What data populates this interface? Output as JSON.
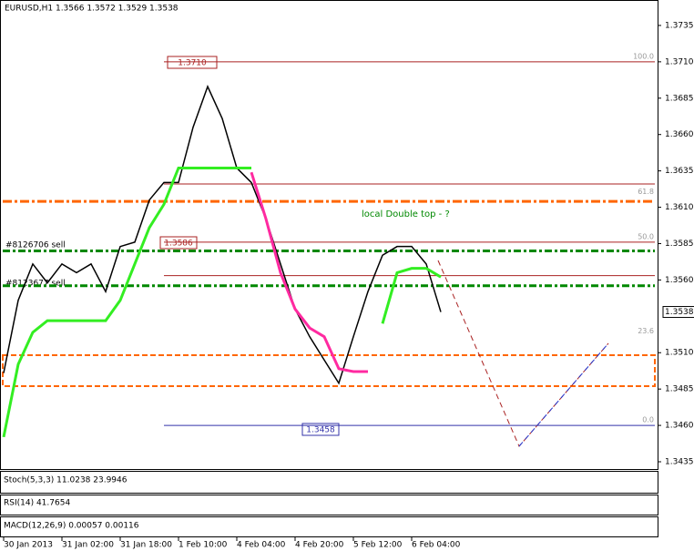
{
  "chart_data": {
    "type": "line",
    "title": "EURUSD,H1  1.3566 1.3572 1.3529 1.3538",
    "categories": [
      "30 Jan 2013",
      null,
      null,
      null,
      "31 Jan 02:00",
      null,
      null,
      null,
      "31 Jan 18:00",
      null,
      null,
      null,
      "1 Feb 10:00",
      null,
      null,
      null,
      "4 Feb 04:00",
      null,
      null,
      null,
      "4 Feb 20:00",
      null,
      null,
      null,
      "5 Feb 12:00",
      null,
      null,
      null,
      "6 Feb 04:00",
      null,
      null
    ],
    "series": [
      {
        "name": "EURUSD",
        "color": "#000000",
        "values": [
          1.3496,
          1.3546,
          1.3571,
          1.3558,
          1.3571,
          1.3565,
          1.3571,
          1.3552,
          1.3583,
          1.3586,
          1.3615,
          1.3627,
          1.3627,
          1.3665,
          1.3693,
          1.3671,
          1.3637,
          1.3627,
          1.3602,
          1.3571,
          1.354,
          1.3521,
          1.3505,
          1.3489,
          1.3521,
          1.3552,
          1.3577,
          1.3583,
          1.3583,
          1.3571,
          1.3538
        ]
      },
      {
        "name": "trend-up",
        "color": "#33ee22",
        "values": [
          1.3452,
          1.3502,
          1.3524,
          1.3532,
          1.3532,
          1.3532,
          1.3532,
          1.3532,
          1.3546,
          1.3571,
          1.3596,
          1.3612,
          1.3637,
          1.3637,
          1.3637,
          1.3637,
          1.3637,
          1.3637,
          null,
          null,
          null,
          null,
          null,
          null,
          null,
          null,
          1.353,
          1.3565,
          1.3568,
          1.3568,
          1.3562
        ]
      },
      {
        "name": "trend-down",
        "color": "#ff2aa0",
        "values": [
          null,
          null,
          null,
          null,
          null,
          null,
          null,
          null,
          null,
          null,
          null,
          null,
          null,
          null,
          null,
          null,
          null,
          1.3634,
          1.3602,
          1.3565,
          1.354,
          1.3527,
          1.3521,
          1.3499,
          1.3497,
          1.3497,
          null,
          null,
          null,
          null,
          null
        ]
      }
    ],
    "levels": [
      {
        "value": 1.3614,
        "color": "#ff6600"
      },
      {
        "value": 1.358,
        "color": "#008800"
      },
      {
        "value": 1.3556,
        "color": "#008800"
      },
      {
        "value": 1.371,
        "color": "#aa2222"
      },
      {
        "value": 1.3626,
        "color": "#aa2222"
      },
      {
        "value": 1.3586,
        "color": "#aa2222"
      },
      {
        "value": 1.3563,
        "color": "#aa2222"
      },
      {
        "value": 1.346,
        "color": "#3333aa"
      }
    ],
    "fib": [
      {
        "label": "100.0",
        "value": 1.371
      },
      {
        "label": "61.8",
        "value": 1.3617
      },
      {
        "label": "50.0",
        "value": 1.3586
      },
      {
        "label": "23.6",
        "value": 1.3521
      },
      {
        "label": "0.0",
        "value": 1.346
      }
    ],
    "annotations": [
      "1.3710",
      "1.3586",
      "1.3458",
      "local Double top - ?",
      "#8126706 sell",
      "#8123677 sell"
    ],
    "last_price": 1.3538,
    "ylim": [
      1.343,
      1.37525
    ],
    "yticks": [
      1.3735,
      {
        "value": 1.371,
        "label": "1.3710"
      },
      1.3685,
      {
        "value": 1.366,
        "label": "1.3660"
      },
      1.3635,
      {
        "value": 1.361,
        "label": "1.3610"
      },
      1.3585,
      {
        "value": 1.356,
        "label": "1.3560"
      },
      {
        "value": 1.351,
        "label": "1.3510"
      },
      1.3485,
      {
        "value": 1.346,
        "label": "1.3460"
      },
      1.3435
    ],
    "indicators": [
      "Stoch(5,3,3) 11.0238 23.9946",
      "RSI(14) 41.7654",
      "MACD(12,26,9) 0.00057 0.00116"
    ]
  }
}
